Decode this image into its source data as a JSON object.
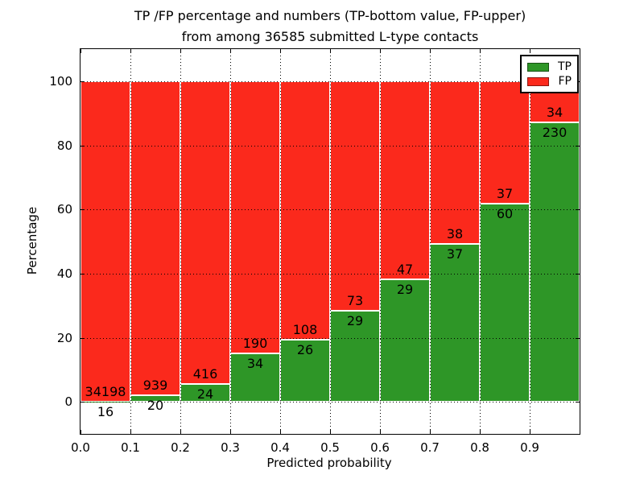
{
  "title": {
    "line1": "TP /FP percentage and numbers (TP-bottom value, FP-upper)",
    "line2": "from among 36585 submitted L-type contacts"
  },
  "axes": {
    "xlabel": "Predicted probability",
    "ylabel": "Percentage",
    "xtick_labels": [
      "0.0",
      "0.1",
      "0.2",
      "0.3",
      "0.4",
      "0.5",
      "0.6",
      "0.7",
      "0.8",
      "0.9"
    ],
    "yticks": [
      0,
      20,
      40,
      60,
      80,
      100
    ],
    "xlim": [
      0.0,
      1.0
    ],
    "ylim": [
      -10,
      110
    ]
  },
  "legend": {
    "position": "upper right",
    "items": [
      {
        "label": "TP",
        "color": "#2e9627"
      },
      {
        "label": "FP",
        "color": "#fb291c"
      }
    ]
  },
  "chart_data": {
    "type": "bar",
    "stacked": true,
    "normalized": "percent (each bin stacks to 100%)",
    "title": "TP /FP percentage and numbers (TP-bottom value, FP-upper) from among 36585 submitted L-type contacts",
    "xlabel": "Predicted probability",
    "ylabel": "Percentage",
    "categories": [
      "0.0",
      "0.1",
      "0.2",
      "0.3",
      "0.4",
      "0.5",
      "0.6",
      "0.7",
      "0.8",
      "0.9"
    ],
    "bin_width": 0.1,
    "series": [
      {
        "name": "TP",
        "color": "#2e9627",
        "counts": [
          16,
          20,
          24,
          34,
          26,
          29,
          29,
          37,
          60,
          230
        ]
      },
      {
        "name": "FP",
        "color": "#fb291c",
        "counts": [
          34198,
          939,
          416,
          190,
          108,
          73,
          47,
          38,
          37,
          34
        ]
      }
    ],
    "tp_percent": [
      0.05,
      2.09,
      5.45,
      15.18,
      19.4,
      28.43,
      38.16,
      49.33,
      61.86,
      87.12
    ],
    "total_contacts": 36585,
    "ylim": [
      -10,
      110
    ],
    "yticks": [
      0,
      20,
      40,
      60,
      80,
      100
    ],
    "grid": "dotted, drawn over bars",
    "legend_position": "upper right",
    "bar_edge_color": "#ffffff"
  }
}
